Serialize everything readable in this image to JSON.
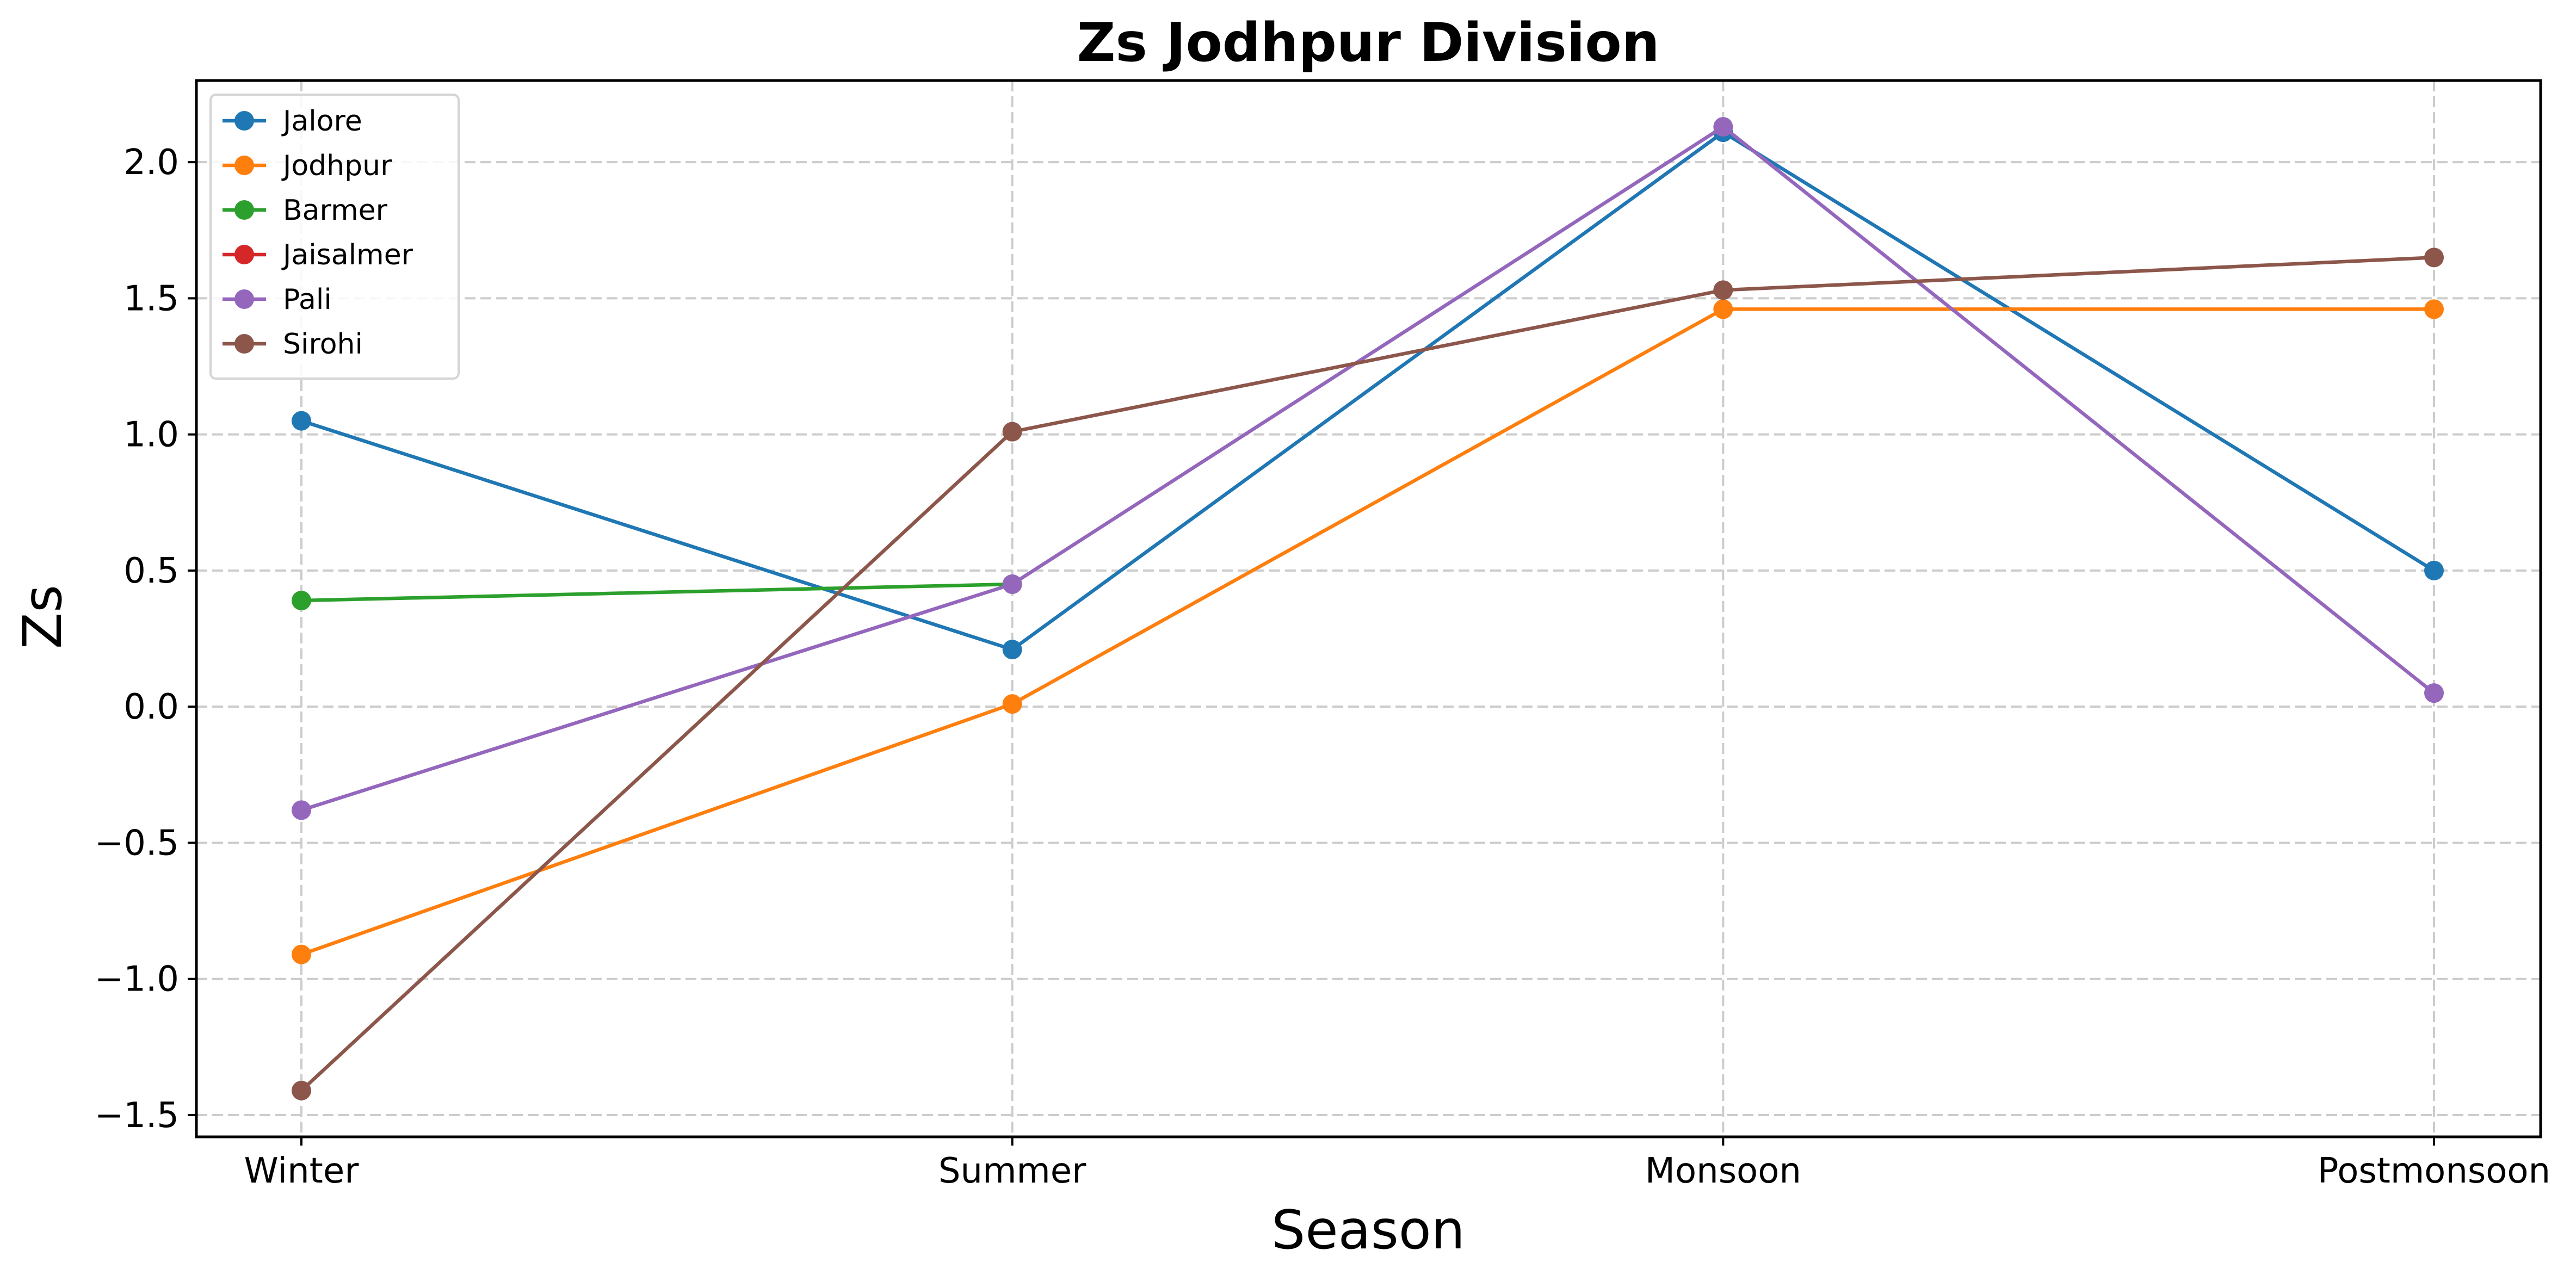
{
  "chart_data": {
    "type": "line",
    "title": "Zs  Jodhpur Division",
    "xlabel": "Season",
    "ylabel": "Zs",
    "categories": [
      "Winter",
      "Summer",
      "Monsoon",
      "Postmonsoon"
    ],
    "ylim": [
      -1.58,
      2.3
    ],
    "yticks": [
      -1.5,
      -1.0,
      -0.5,
      0.0,
      0.5,
      1.0,
      1.5,
      2.0
    ],
    "ytick_labels": [
      "−1.5",
      "−1.0",
      "−0.5",
      "0.0",
      "0.5",
      "1.0",
      "1.5",
      "2.0"
    ],
    "grid": true,
    "legend_position": "upper-left",
    "series": [
      {
        "name": "Jalore",
        "color": "#1f77b4",
        "values": [
          1.05,
          0.21,
          2.11,
          0.5
        ]
      },
      {
        "name": "Jodhpur",
        "color": "#ff7f0e",
        "values": [
          -0.91,
          0.01,
          1.46,
          1.46
        ]
      },
      {
        "name": "Barmer",
        "color": "#2ca02c",
        "values": [
          0.39,
          0.45,
          null,
          null
        ]
      },
      {
        "name": "Jaisalmer",
        "color": "#d62728",
        "values": [
          null,
          null,
          null,
          null
        ]
      },
      {
        "name": "Pali",
        "color": "#9467bd",
        "values": [
          -0.38,
          0.45,
          2.13,
          0.05
        ]
      },
      {
        "name": "Sirohi",
        "color": "#8c564b",
        "values": [
          -1.41,
          1.01,
          1.53,
          1.65
        ]
      }
    ]
  }
}
